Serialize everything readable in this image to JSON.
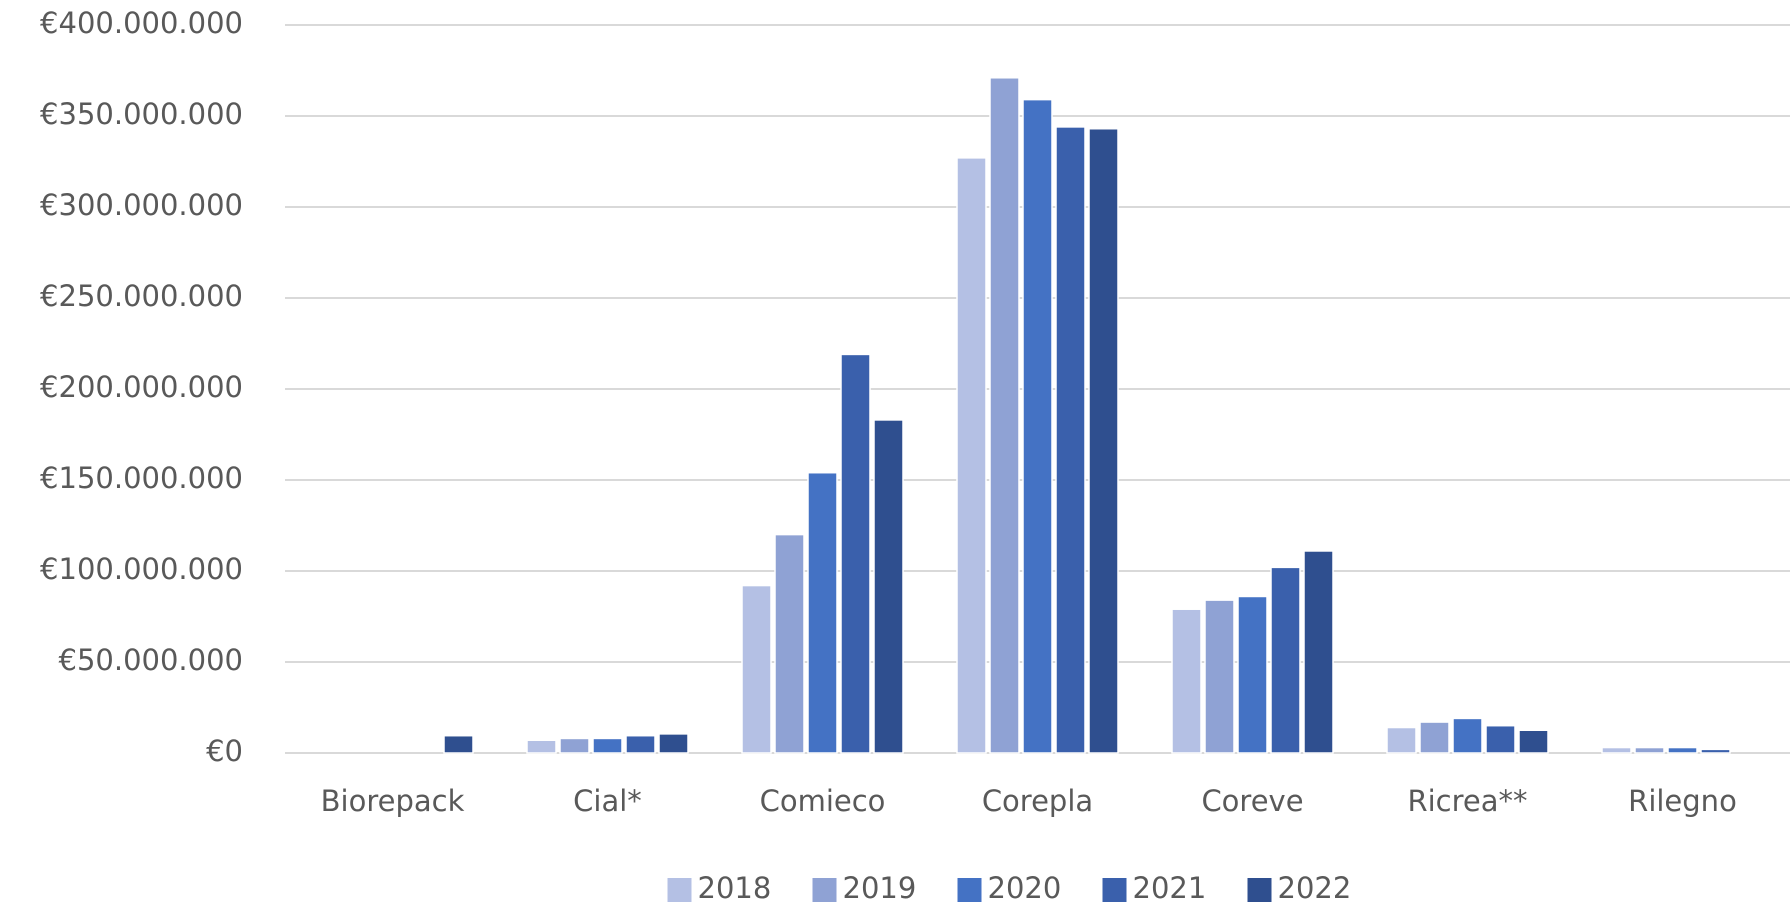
{
  "chart_data": {
    "type": "bar",
    "categories": [
      "Biorepack",
      "Cial*",
      "Comieco",
      "Corepla",
      "Coreve",
      "Ricrea**",
      "Rilegno"
    ],
    "series": [
      {
        "name": "2018",
        "color": "#b4c0e4",
        "values": [
          null,
          7000000,
          92000000,
          327000000,
          79000000,
          14000000,
          3000000
        ]
      },
      {
        "name": "2019",
        "color": "#8fa2d4",
        "values": [
          null,
          8000000,
          120000000,
          371000000,
          84000000,
          17000000,
          3000000
        ]
      },
      {
        "name": "2020",
        "color": "#4472c4",
        "values": [
          null,
          8000000,
          154000000,
          359000000,
          86000000,
          19000000,
          3000000
        ]
      },
      {
        "name": "2021",
        "color": "#3a60ac",
        "values": [
          null,
          9500000,
          219000000,
          344000000,
          102000000,
          15000000,
          2000000
        ]
      },
      {
        "name": "2022",
        "color": "#2f4f8f",
        "values": [
          9500000,
          10500000,
          183000000,
          343000000,
          111000000,
          12500000,
          null
        ]
      }
    ],
    "ylim": [
      0,
      400000000
    ],
    "yticks": [
      {
        "value": 0,
        "label": "€0"
      },
      {
        "value": 50000000,
        "label": "€50.000.000"
      },
      {
        "value": 100000000,
        "label": "€100.000.000"
      },
      {
        "value": 150000000,
        "label": "€150.000.000"
      },
      {
        "value": 200000000,
        "label": "€200.000.000"
      },
      {
        "value": 250000000,
        "label": "€250.000.000"
      },
      {
        "value": 300000000,
        "label": "€300.000.000"
      },
      {
        "value": 350000000,
        "label": "€350.000.000"
      },
      {
        "value": 400000000,
        "label": "€400.000.000"
      }
    ],
    "grid": true,
    "legend": "bottom"
  }
}
